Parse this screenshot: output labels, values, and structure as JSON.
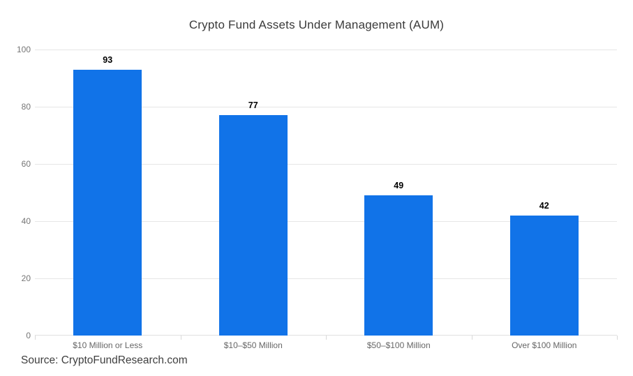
{
  "chart": {
    "title": "Crypto Fund Assets Under Management (AUM)",
    "source_note": "Source: CryptoFundResearch.com"
  },
  "chart_data": {
    "type": "bar",
    "title": "Crypto Fund Assets Under Management (AUM)",
    "categories": [
      "$10 Million or Less",
      "$10–$50 Million",
      "$50–$100 Million",
      "Over $100 Million"
    ],
    "values": [
      93,
      77,
      49,
      42
    ],
    "data_labels": [
      "93",
      "77",
      "49",
      "42"
    ],
    "xlabel": "",
    "ylabel": "",
    "ylim": [
      0,
      100
    ],
    "yticks": [
      0,
      20,
      40,
      60,
      80,
      100
    ],
    "grid": true,
    "legend": false,
    "bar_color": "#1173e8",
    "gridline_color": "#e6e6e6",
    "axis_label_color": "#757575",
    "category_label_color": "#666666",
    "data_label_color": "#000000",
    "source_note": "Source: CryptoFundResearch.com"
  }
}
